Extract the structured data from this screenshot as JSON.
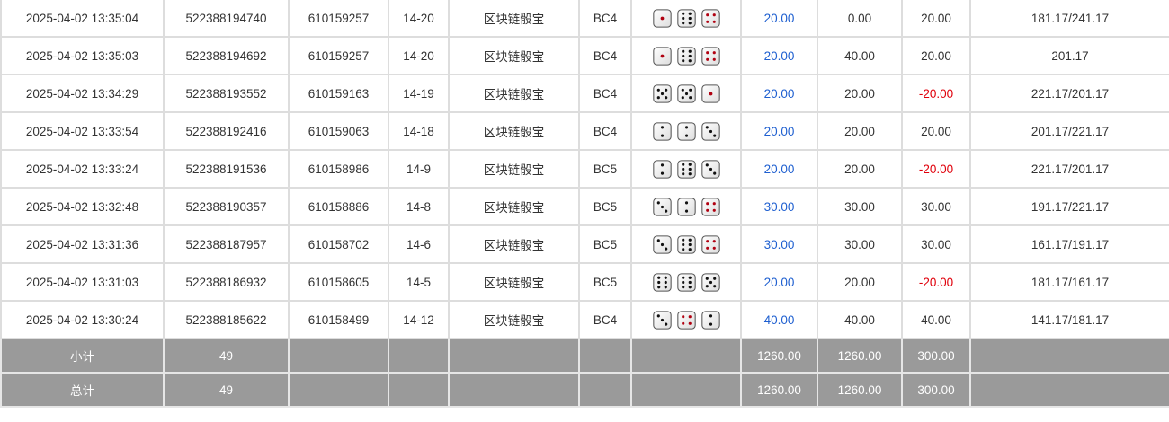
{
  "rows": [
    {
      "time": "2025-04-02 13:35:04",
      "order_id": "522388194740",
      "issue": "610159257",
      "period": "14-20",
      "game": "区块链骰宝",
      "table": "BC4",
      "dice": [
        1,
        6,
        4
      ],
      "bet": "20.00",
      "valid": "0.00",
      "win": "20.00",
      "win_neg": false,
      "balance": "181.17/241.17"
    },
    {
      "time": "2025-04-02 13:35:03",
      "order_id": "522388194692",
      "issue": "610159257",
      "period": "14-20",
      "game": "区块链骰宝",
      "table": "BC4",
      "dice": [
        1,
        6,
        4
      ],
      "bet": "20.00",
      "valid": "40.00",
      "win": "20.00",
      "win_neg": false,
      "balance": "201.17"
    },
    {
      "time": "2025-04-02 13:34:29",
      "order_id": "522388193552",
      "issue": "610159163",
      "period": "14-19",
      "game": "区块链骰宝",
      "table": "BC4",
      "dice": [
        5,
        5,
        1
      ],
      "bet": "20.00",
      "valid": "20.00",
      "win": "-20.00",
      "win_neg": true,
      "balance": "221.17/201.17"
    },
    {
      "time": "2025-04-02 13:33:54",
      "order_id": "522388192416",
      "issue": "610159063",
      "period": "14-18",
      "game": "区块链骰宝",
      "table": "BC4",
      "dice": [
        2,
        2,
        3
      ],
      "bet": "20.00",
      "valid": "20.00",
      "win": "20.00",
      "win_neg": false,
      "balance": "201.17/221.17"
    },
    {
      "time": "2025-04-02 13:33:24",
      "order_id": "522388191536",
      "issue": "610158986",
      "period": "14-9",
      "game": "区块链骰宝",
      "table": "BC5",
      "dice": [
        2,
        6,
        3
      ],
      "bet": "20.00",
      "valid": "20.00",
      "win": "-20.00",
      "win_neg": true,
      "balance": "221.17/201.17"
    },
    {
      "time": "2025-04-02 13:32:48",
      "order_id": "522388190357",
      "issue": "610158886",
      "period": "14-8",
      "game": "区块链骰宝",
      "table": "BC5",
      "dice": [
        3,
        2,
        4
      ],
      "bet": "30.00",
      "valid": "30.00",
      "win": "30.00",
      "win_neg": false,
      "balance": "191.17/221.17"
    },
    {
      "time": "2025-04-02 13:31:36",
      "order_id": "522388187957",
      "issue": "610158702",
      "period": "14-6",
      "game": "区块链骰宝",
      "table": "BC5",
      "dice": [
        3,
        6,
        4
      ],
      "bet": "30.00",
      "valid": "30.00",
      "win": "30.00",
      "win_neg": false,
      "balance": "161.17/191.17"
    },
    {
      "time": "2025-04-02 13:31:03",
      "order_id": "522388186932",
      "issue": "610158605",
      "period": "14-5",
      "game": "区块链骰宝",
      "table": "BC5",
      "dice": [
        6,
        6,
        5
      ],
      "bet": "20.00",
      "valid": "20.00",
      "win": "-20.00",
      "win_neg": true,
      "balance": "181.17/161.17"
    },
    {
      "time": "2025-04-02 13:30:24",
      "order_id": "522388185622",
      "issue": "610158499",
      "period": "14-12",
      "game": "区块链骰宝",
      "table": "BC4",
      "dice": [
        3,
        4,
        2
      ],
      "bet": "40.00",
      "valid": "40.00",
      "win": "40.00",
      "win_neg": false,
      "balance": "141.17/181.17"
    }
  ],
  "subtotal": {
    "label": "小计",
    "count": "49",
    "bet": "1260.00",
    "valid": "1260.00",
    "win": "300.00"
  },
  "total": {
    "label": "总计",
    "count": "49",
    "bet": "1260.00",
    "valid": "1260.00",
    "win": "300.00"
  },
  "colors": {
    "bet": "#1e5fd0",
    "loss": "#e0000b",
    "summary_bg": "#9a9a9a",
    "pip_red": "#b00010"
  }
}
